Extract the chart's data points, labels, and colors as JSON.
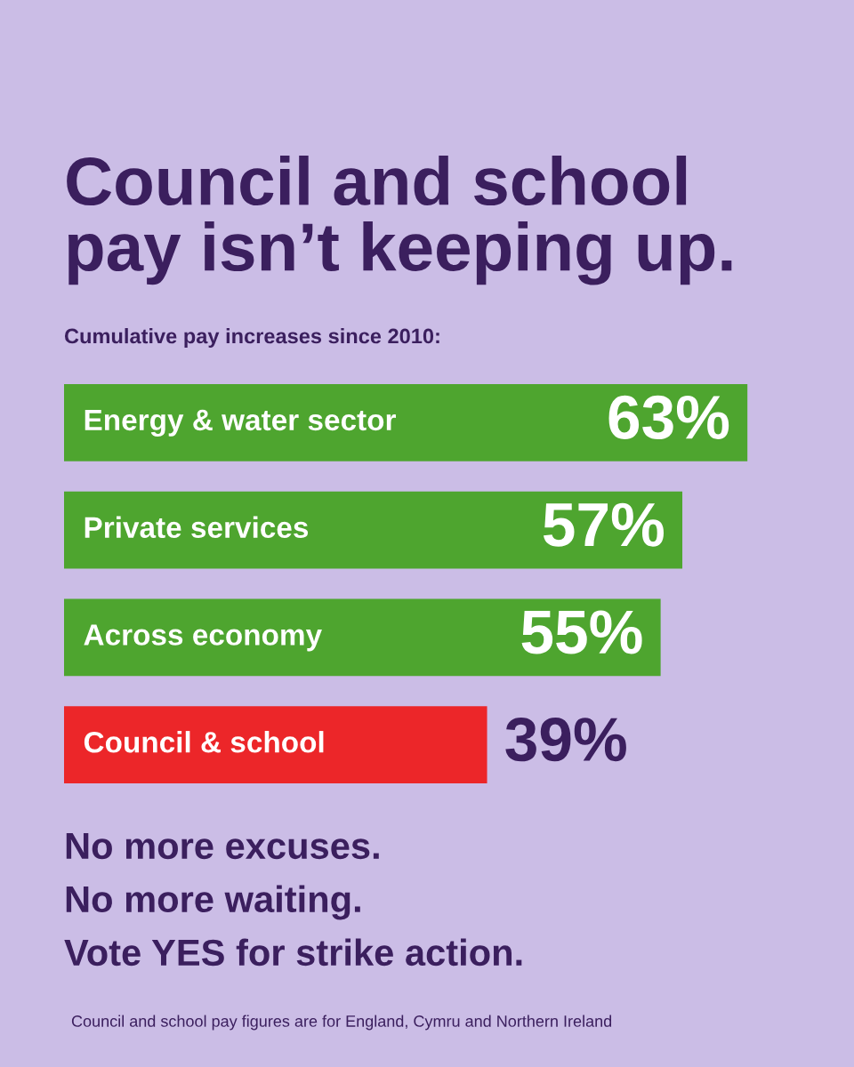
{
  "chart_data": {
    "type": "bar",
    "orientation": "horizontal",
    "title": "Council and school\npay isn’t keeping up.",
    "subtitle": "Cumulative pay increases since 2010:",
    "categories": [
      "Energy & water sector",
      "Private services",
      "Across economy",
      "Council & school"
    ],
    "values": [
      63,
      57,
      55,
      39
    ],
    "value_labels": [
      "63%",
      "57%",
      "55%",
      "39%"
    ],
    "colors": [
      "#4ea52f",
      "#4ea52f",
      "#4ea52f",
      "#ec2629"
    ],
    "annotations": [
      "No more excuses.",
      "No more waiting.",
      "Vote YES for strike action.",
      "Council and school pay figures are for England, Cymru and Northern Ireland"
    ]
  }
}
